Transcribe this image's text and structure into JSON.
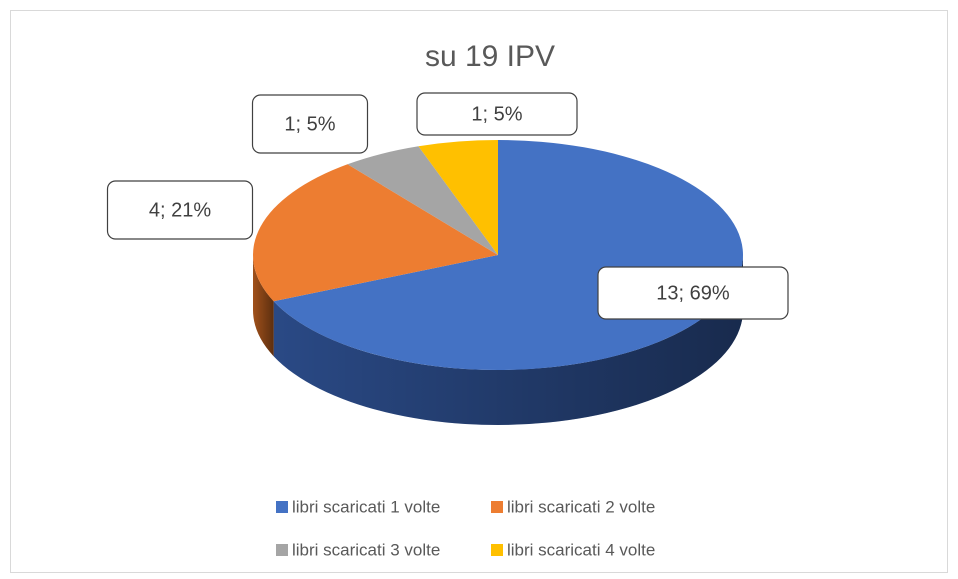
{
  "chart_data": {
    "type": "pie",
    "title": "su 19 IPV",
    "categories": [
      "libri scaricati 1 volte",
      "libri scaricati 2 volte",
      "libri scaricati 3 volte",
      "libri scaricati 4 volte"
    ],
    "values": [
      13,
      4,
      1,
      1
    ],
    "value_labels": [
      "13; 69%",
      "4; 21%",
      "1; 5%",
      "1; 5%"
    ],
    "colors": [
      "#4472c4",
      "#ed7d31",
      "#a5a5a5",
      "#ffc000"
    ],
    "side_colors": [
      "#2c4d8c",
      "#a9551c",
      "#6f6f6f",
      "#b08600"
    ],
    "legend": "bottom"
  }
}
